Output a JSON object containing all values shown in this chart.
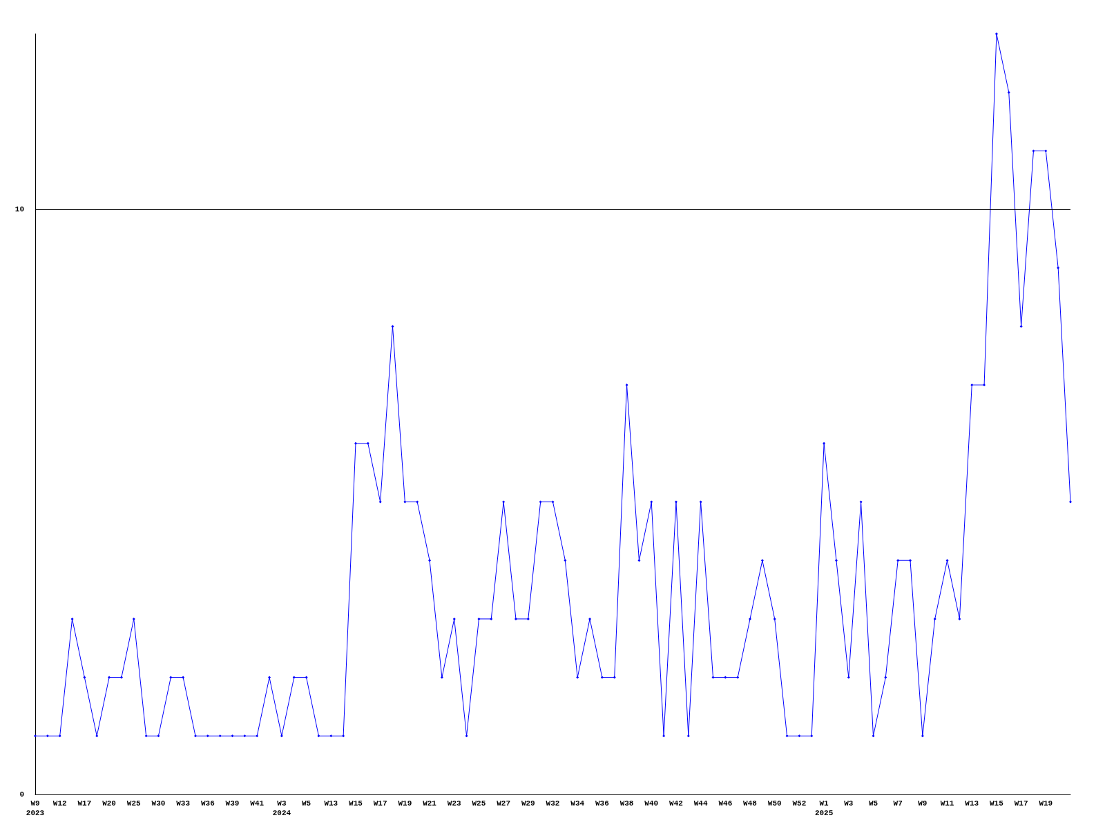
{
  "chart_data": {
    "type": "line",
    "categories": [
      "W9\n2023",
      null,
      "W12",
      null,
      "W17",
      null,
      "W20",
      null,
      "W25",
      null,
      "W30",
      null,
      "W33",
      null,
      "W36",
      null,
      "W39",
      null,
      "W41",
      null,
      "W3\n2024",
      null,
      "W5",
      null,
      "W13",
      null,
      "W15",
      null,
      "W17",
      null,
      "W19",
      null,
      "W21",
      null,
      "W23",
      null,
      "W25",
      null,
      "W27",
      null,
      "W29",
      null,
      "W32",
      null,
      "W34",
      null,
      "W36",
      null,
      "W38",
      null,
      "W40",
      null,
      "W42",
      null,
      "W44",
      null,
      "W46",
      null,
      "W48",
      null,
      "W50",
      null,
      "W52",
      null,
      "W1\n2025",
      null,
      "W3",
      null,
      "W5",
      null,
      "W7",
      null,
      "W9",
      null,
      "W11",
      null,
      "W13",
      null,
      "W15",
      null,
      "W17",
      null,
      "W19",
      null,
      null
    ],
    "series": [
      {
        "color": "#0000ff",
        "values": [
          1,
          1,
          1,
          3,
          2,
          1,
          2,
          2,
          3,
          1,
          1,
          2,
          2,
          1,
          1,
          1,
          1,
          1,
          1,
          2,
          1,
          2,
          2,
          1,
          1,
          1,
          6,
          6,
          5,
          8,
          5,
          5,
          4,
          2,
          3,
          1,
          3,
          3,
          5,
          3,
          3,
          5,
          5,
          4,
          2,
          3,
          2,
          2,
          7,
          4,
          5,
          1,
          5,
          1,
          5,
          2,
          2,
          2,
          3,
          4,
          3,
          1,
          1,
          1,
          6,
          4,
          2,
          5,
          1,
          2,
          4,
          4,
          1,
          3,
          4,
          3,
          7,
          7,
          13,
          12,
          8,
          11,
          11,
          9,
          5
        ]
      }
    ],
    "ylim": [
      0,
      13
    ],
    "yticks": [
      0,
      10
    ],
    "grid": "y",
    "marker": "diamond",
    "line_style": "solid"
  }
}
